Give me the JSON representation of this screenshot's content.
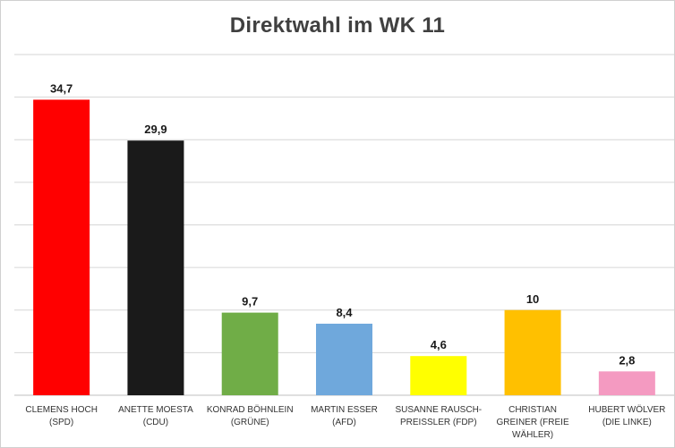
{
  "chart_data": {
    "type": "bar",
    "title": "Direktwahl im WK 11",
    "categories": [
      "CLEMENS HOCH (SPD)",
      "ANETTE MOESTA (CDU)",
      "KONRAD BÖHNLEIN (GRÜNE)",
      "MARTIN ESSER (AFD)",
      "SUSANNE RAUSCH-PREIßLER (FDP)",
      "CHRISTIAN GREINER (FREIE WÄHLER)",
      "HUBERT WÖLVER (DIE LINKE)"
    ],
    "values": [
      34.7,
      29.9,
      9.7,
      8.4,
      4.6,
      10,
      2.8
    ],
    "value_labels": [
      "34,7",
      "29,9",
      "9,7",
      "8,4",
      "4,6",
      "10",
      "2,8"
    ],
    "colors": [
      "#ff0000",
      "#1a1a1a",
      "#70ad47",
      "#6fa8dc",
      "#ffff00",
      "#ffc000",
      "#f49ac1"
    ],
    "ylim": [
      0,
      40
    ],
    "grid": true,
    "xlabel": "",
    "ylabel": ""
  }
}
